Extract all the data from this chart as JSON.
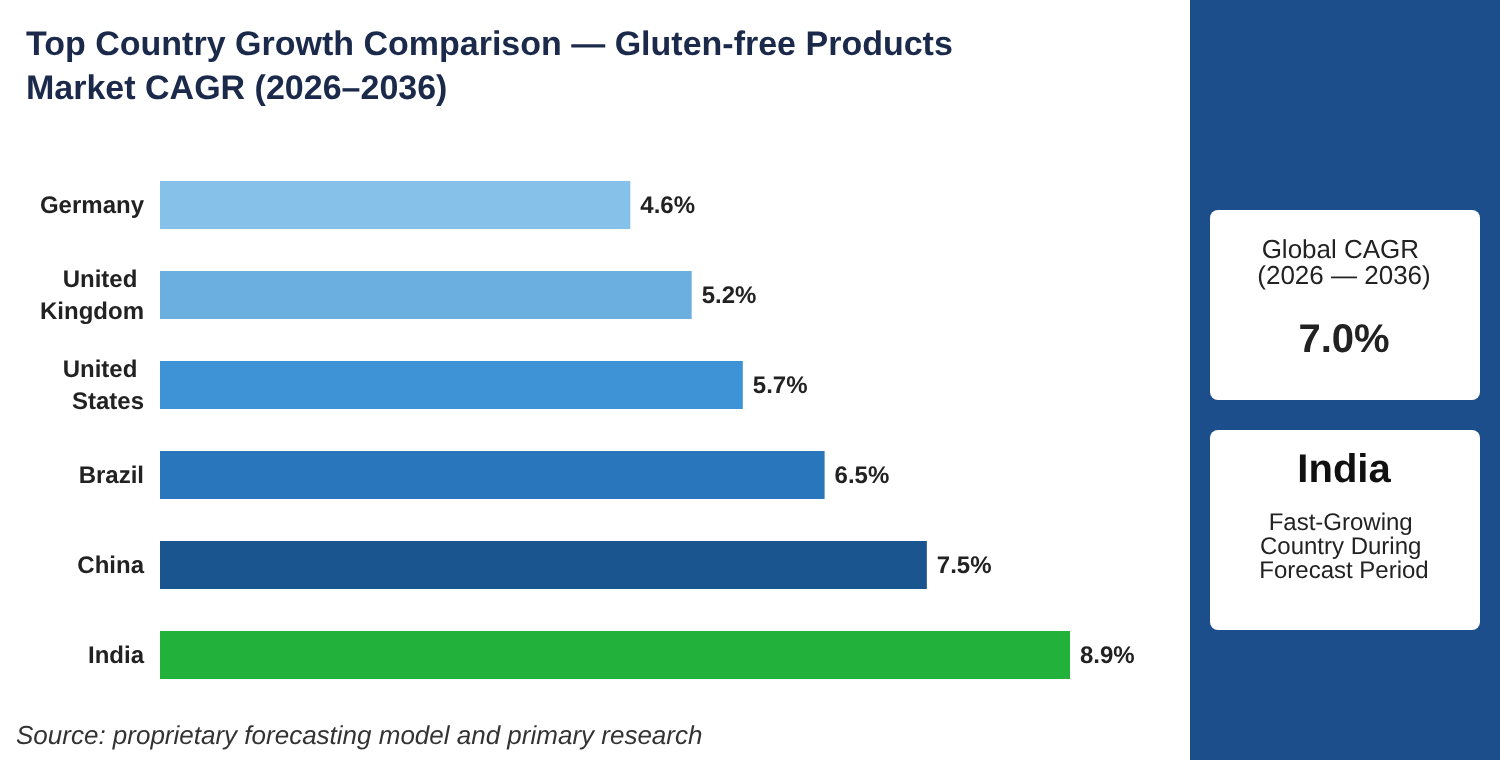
{
  "chart_data": {
    "type": "bar",
    "orientation": "horizontal",
    "tick_labels": "y",
    "title": "Top Country Growth Comparison — Gluten-free Products Market CAGR (2026–2036)",
    "categories": [
      "Germany",
      "United Kingdom",
      "United States",
      "Brazil",
      "China",
      "India"
    ],
    "values": [
      4.6,
      5.2,
      5.7,
      6.5,
      7.5,
      8.9
    ],
    "colors": [
      "#85c1e9",
      "#6aafe0",
      "#3d93d6",
      "#2a76bd",
      "#1a558f",
      "#22b23c"
    ],
    "value_labels": [
      "4.6%",
      "5.2%",
      "5.7%",
      "6.5%",
      "7.5%",
      "8.9%"
    ],
    "annotations": [
      "Source: proprietary forecasting model and primary research",
      "Global CAGR (2026 — 2036)",
      "7.0%",
      "India",
      "Fast-Growing Country During Forecast Period"
    ]
  }
}
